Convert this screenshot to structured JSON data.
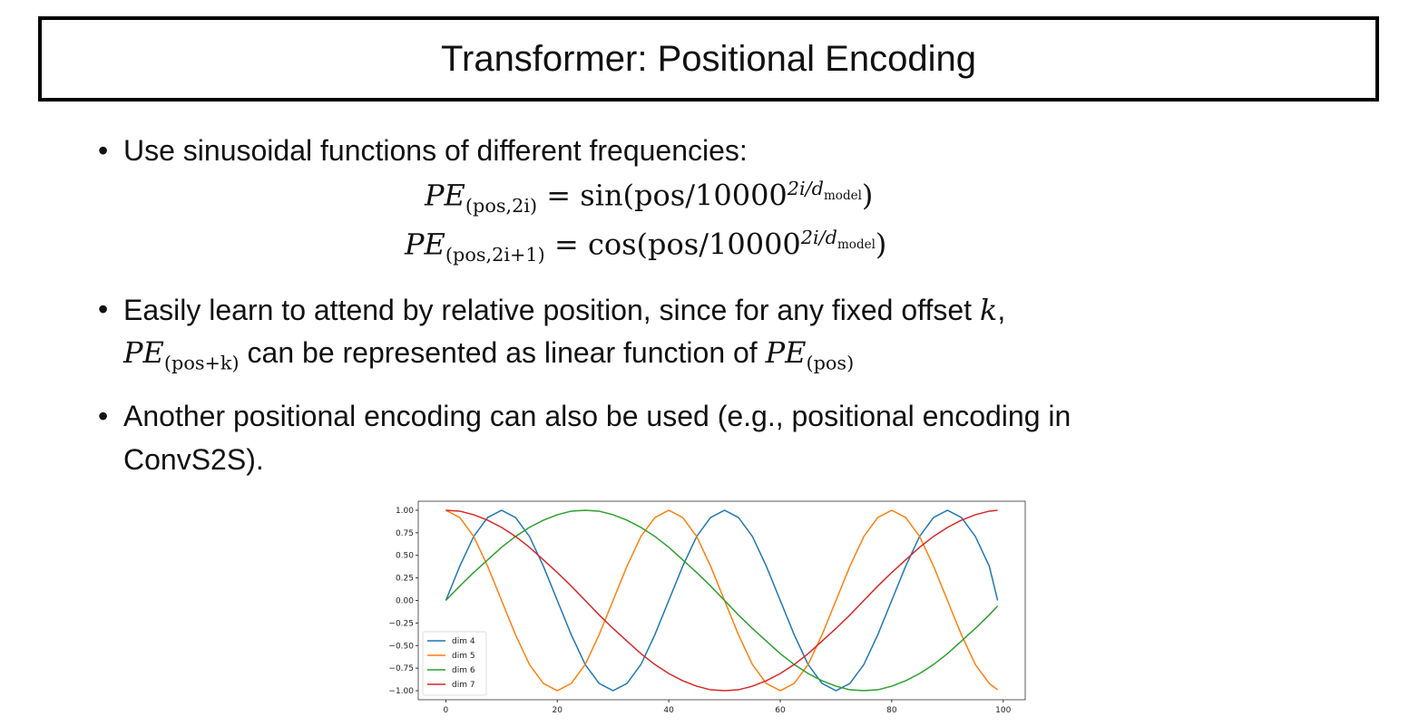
{
  "header": {
    "title": "Transformer: Positional Encoding"
  },
  "bullets": [
    {
      "text": "Use sinusoidal functions of different frequencies:",
      "equations": [
        {
          "lhs": "PE",
          "lhs_sub": "(pos,2i)",
          "rhs": "= sin(pos/10000",
          "exp": "2i/d",
          "exp_sub": "model",
          "close": ")"
        },
        {
          "lhs": "PE",
          "lhs_sub": "(pos,2i+1)",
          "rhs": "= cos(pos/10000",
          "exp": "2i/d",
          "exp_sub": "model",
          "close": ")"
        }
      ]
    },
    {
      "text": "Easily learn to attend by relative position, since for any fixed offset ",
      "var": "k",
      "punct": ",",
      "line2": {
        "a": "PE",
        "a_sub": "(pos+k)",
        "mid": " can be represented as linear function of ",
        "b": "PE",
        "b_sub": "(pos)"
      }
    },
    {
      "text": "Another positional encoding can also be used (e.g., positional encoding in",
      "line2": "ConvS2S)."
    }
  ],
  "chart_data": {
    "type": "line",
    "x": [
      0,
      2.5,
      5,
      7.5,
      10,
      12.5,
      15,
      17.5,
      20,
      22.5,
      25,
      27.5,
      30,
      32.5,
      35,
      37.5,
      40,
      42.5,
      45,
      47.5,
      50,
      52.5,
      55,
      57.5,
      60,
      62.5,
      65,
      67.5,
      70,
      72.5,
      75,
      77.5,
      80,
      82.5,
      85,
      87.5,
      90,
      92.5,
      95,
      97.5,
      99
    ],
    "series": [
      {
        "name": "dim 4",
        "color": "#1f77b4",
        "values": [
          0,
          0.38,
          0.71,
          0.92,
          1,
          0.92,
          0.71,
          0.38,
          0,
          -0.38,
          -0.71,
          -0.92,
          -1,
          -0.92,
          -0.71,
          -0.38,
          0,
          0.38,
          0.71,
          0.92,
          1,
          0.92,
          0.71,
          0.38,
          0,
          -0.38,
          -0.71,
          -0.92,
          -1,
          -0.92,
          -0.71,
          -0.38,
          0,
          0.38,
          0.71,
          0.92,
          1,
          0.92,
          0.71,
          0.38,
          0
        ]
      },
      {
        "name": "dim 5",
        "color": "#ff7f0e",
        "values": [
          1,
          0.92,
          0.71,
          0.38,
          0,
          -0.38,
          -0.71,
          -0.92,
          -1,
          -0.92,
          -0.71,
          -0.38,
          0,
          0.38,
          0.71,
          0.92,
          1,
          0.92,
          0.71,
          0.38,
          0,
          -0.38,
          -0.71,
          -0.92,
          -1,
          -0.92,
          -0.71,
          -0.38,
          0,
          0.38,
          0.71,
          0.92,
          1,
          0.92,
          0.71,
          0.38,
          0,
          -0.38,
          -0.71,
          -0.92,
          -0.99
        ]
      },
      {
        "name": "dim 6",
        "color": "#2ca02c",
        "values": [
          0,
          0.16,
          0.31,
          0.45,
          0.59,
          0.71,
          0.81,
          0.89,
          0.95,
          0.99,
          1,
          0.99,
          0.95,
          0.89,
          0.81,
          0.71,
          0.59,
          0.45,
          0.31,
          0.16,
          0,
          -0.16,
          -0.31,
          -0.45,
          -0.59,
          -0.71,
          -0.81,
          -0.89,
          -0.95,
          -0.99,
          -1,
          -0.99,
          -0.95,
          -0.89,
          -0.81,
          -0.71,
          -0.59,
          -0.45,
          -0.31,
          -0.16,
          -0.06
        ]
      },
      {
        "name": "dim 7",
        "color": "#d62728",
        "values": [
          1,
          0.99,
          0.95,
          0.89,
          0.81,
          0.71,
          0.59,
          0.45,
          0.31,
          0.16,
          0,
          -0.16,
          -0.31,
          -0.45,
          -0.59,
          -0.71,
          -0.81,
          -0.89,
          -0.95,
          -0.99,
          -1,
          -0.99,
          -0.95,
          -0.89,
          -0.81,
          -0.71,
          -0.59,
          -0.45,
          -0.31,
          -0.16,
          0,
          0.16,
          0.31,
          0.45,
          0.59,
          0.71,
          0.81,
          0.89,
          0.95,
          0.99,
          1
        ]
      }
    ],
    "xlim": [
      -4.95,
      103.95
    ],
    "ylim": [
      -1.1,
      1.1
    ],
    "xticks": [
      0,
      20,
      40,
      60,
      80,
      100
    ],
    "yticks": [
      {
        "value": 1,
        "label": "1.00"
      },
      {
        "value": 0.75,
        "label": "0.75"
      },
      {
        "value": 0.5,
        "label": "0.50"
      },
      {
        "value": 0.25,
        "label": "0.25"
      },
      {
        "value": 0,
        "label": "0.00"
      },
      {
        "value": -0.25,
        "label": "−0.25"
      },
      {
        "value": -0.5,
        "label": "−0.50"
      },
      {
        "value": -0.75,
        "label": "−0.75"
      },
      {
        "value": -1,
        "label": "−1.00"
      }
    ],
    "legend": "lower left"
  }
}
